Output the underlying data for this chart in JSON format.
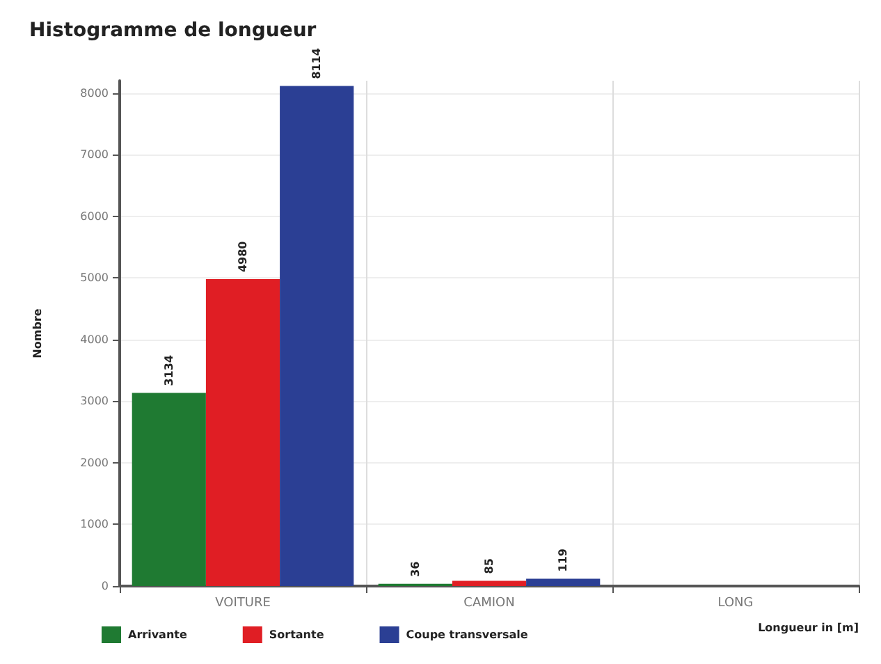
{
  "chart_data": {
    "type": "bar",
    "title": "Histogramme de longueur",
    "xlabel": "Longueur in [m]",
    "ylabel": "Nombre",
    "categories": [
      "VOITURE",
      "CAMION",
      "LONG"
    ],
    "series": [
      {
        "name": "Arrivante",
        "color": "#1f7a32",
        "values": [
          3134,
          36,
          null
        ]
      },
      {
        "name": "Sortante",
        "color": "#e01e24",
        "values": [
          4980,
          85,
          null
        ]
      },
      {
        "name": "Coupe transversale",
        "color": "#2b3f94",
        "values": [
          8114,
          119,
          null
        ]
      }
    ],
    "ylim": [
      0,
      8200
    ],
    "yticks": [
      0,
      1000,
      2000,
      3000,
      4000,
      5000,
      6000,
      7000,
      8000
    ],
    "grid": true,
    "legend": "bottom left",
    "data_labels": true
  }
}
